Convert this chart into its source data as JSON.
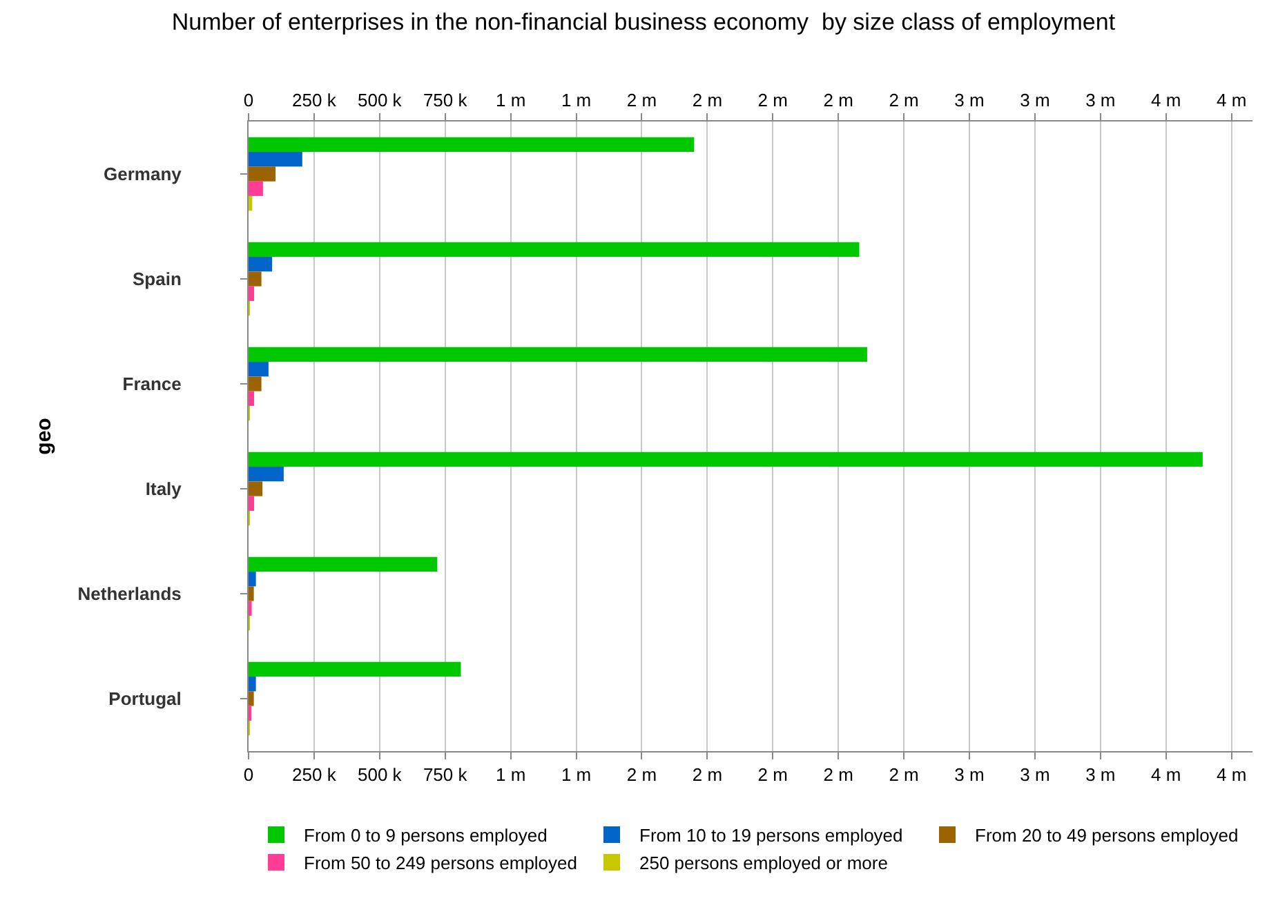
{
  "chart_data": {
    "type": "bar",
    "orientation": "horizontal",
    "title": "Number of enterprises in the non-financial business economy  by size class of employment",
    "ylabel": "geo",
    "categories": [
      "Germany",
      "Spain",
      "France",
      "Italy",
      "Netherlands",
      "Portugal"
    ],
    "series": [
      {
        "name": "From 0 to 9 persons employed",
        "color": "#00c800",
        "values": [
          1700000,
          2330000,
          2360000,
          3640000,
          720000,
          810000
        ]
      },
      {
        "name": "From 10 to 19 persons employed",
        "color": "#0064c8",
        "values": [
          205000,
          90000,
          76000,
          134000,
          28000,
          28000
        ]
      },
      {
        "name": "From 20 to 49 persons employed",
        "color": "#9b6400",
        "values": [
          103000,
          49000,
          49000,
          53000,
          20000,
          20000
        ]
      },
      {
        "name": "From 50 to 249 persons employed",
        "color": "#ff3c96",
        "values": [
          55000,
          21000,
          21000,
          21000,
          12000,
          11000
        ]
      },
      {
        "name": "250 persons employed or more",
        "color": "#c8c800",
        "values": [
          14000,
          3000,
          3000,
          3000,
          3000,
          3000
        ]
      }
    ],
    "xlim": [
      0,
      3830000
    ],
    "xticks": [
      0,
      {
        "value": 250000,
        "label": "250 k"
      },
      {
        "value": 500000,
        "label": "500 k"
      },
      {
        "value": 750000,
        "label": "750 k"
      },
      {
        "value": 1000000,
        "label": "1 m"
      },
      {
        "value": 1250000,
        "label": "1 m"
      },
      {
        "value": 1500000,
        "label": "2 m"
      },
      {
        "value": 1750000,
        "label": "2 m"
      },
      {
        "value": 2000000,
        "label": "2 m"
      },
      {
        "value": 2250000,
        "label": "2 m"
      },
      {
        "value": 2500000,
        "label": "2 m"
      },
      {
        "value": 2750000,
        "label": "3 m"
      },
      {
        "value": 3000000,
        "label": "3 m"
      },
      {
        "value": 3250000,
        "label": "3 m"
      },
      {
        "value": 3500000,
        "label": "4 m"
      },
      {
        "value": 3750000,
        "label": "4 m"
      }
    ],
    "x2lim": [
      0,
      3830000
    ],
    "x2ticks": [
      0,
      {
        "value": 250000,
        "label": "250 k"
      },
      {
        "value": 500000,
        "label": "500 k"
      },
      {
        "value": 750000,
        "label": "750 k"
      },
      {
        "value": 1000000,
        "label": "1 m"
      },
      {
        "value": 1250000,
        "label": "1 m"
      },
      {
        "value": 1500000,
        "label": "2 m"
      },
      {
        "value": 1750000,
        "label": "2 m"
      },
      {
        "value": 2000000,
        "label": "2 m"
      },
      {
        "value": 2250000,
        "label": "2 m"
      },
      {
        "value": 2500000,
        "label": "2 m"
      },
      {
        "value": 2750000,
        "label": "3 m"
      },
      {
        "value": 3000000,
        "label": "3 m"
      },
      {
        "value": 3250000,
        "label": "3 m"
      },
      {
        "value": 3500000,
        "label": "4 m"
      },
      {
        "value": 3750000,
        "label": "4 m"
      }
    ],
    "grid": "x",
    "legend": "bottom"
  }
}
